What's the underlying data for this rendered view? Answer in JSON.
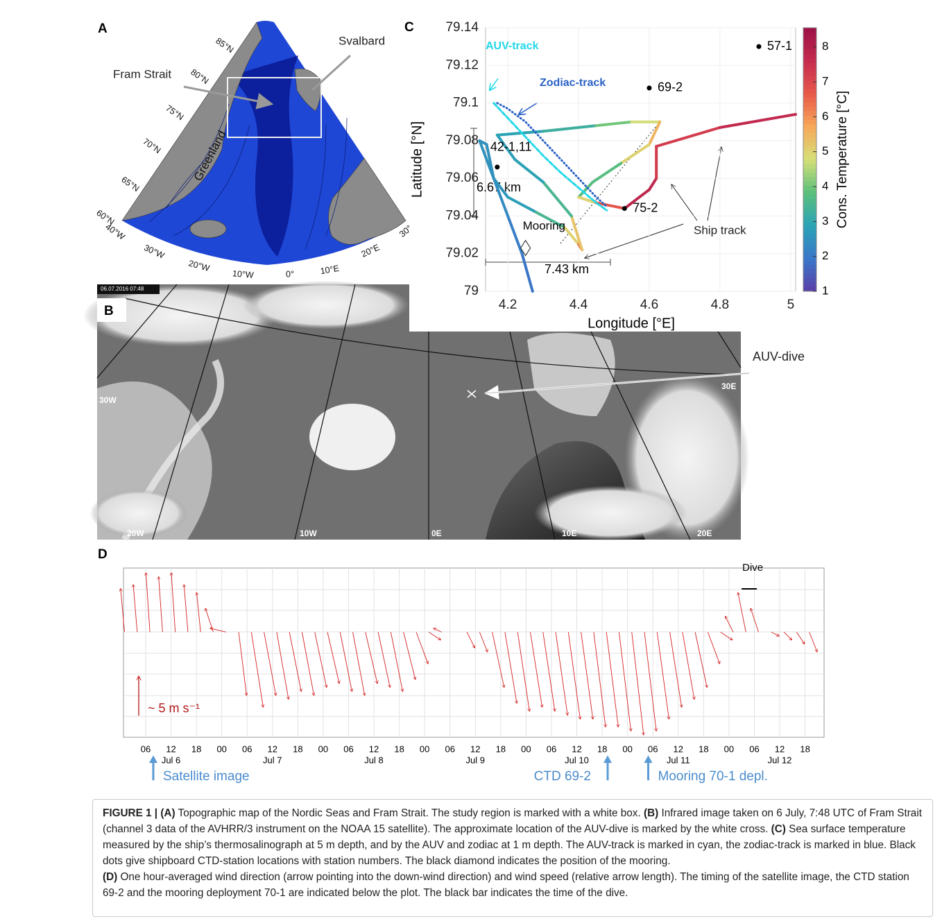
{
  "panel_a": {
    "label": "A",
    "place_labels": [
      "Fram Strait",
      "Svalbard",
      "Greenland"
    ],
    "lat_labels": [
      "85°N",
      "80°N",
      "75°N",
      "70°N",
      "65°N",
      "60°N"
    ],
    "lon_labels": [
      "40°W",
      "30°W",
      "20°W",
      "10°W",
      "0°",
      "10°E",
      "20°E",
      "30°E"
    ]
  },
  "panel_b": {
    "label": "B",
    "timestamp": "06.07.2016 07:48",
    "marker_label": "AUV-dive",
    "lon_labels": [
      "30W",
      "20W",
      "10W",
      "0E",
      "10E",
      "20E",
      "30E"
    ]
  },
  "chart_data": [
    {
      "type": "line",
      "panel_label": "C",
      "xlabel": "Longitude [°E]",
      "ylabel": "Latitude [°N]",
      "xlim": [
        4.137,
        5.014
      ],
      "ylim": [
        79,
        79.14
      ],
      "xticks": [
        4.2,
        4.4,
        4.6,
        4.8,
        5
      ],
      "yticks": [
        79,
        79.02,
        79.04,
        79.06,
        79.08,
        79.1,
        79.12,
        79.14
      ],
      "grid": true,
      "colorbar": {
        "label": "Cons. Temperature [°C]",
        "clim": [
          1,
          8.55
        ],
        "ticks": [
          1,
          2,
          3,
          4,
          5,
          6,
          7,
          8
        ],
        "colormap": [
          "#5a3fa8",
          "#3a78c9",
          "#2ba3b5",
          "#5cc07c",
          "#d6df78",
          "#f7a85a",
          "#e8584a",
          "#c42b4f",
          "#9c1048"
        ]
      },
      "series": [
        {
          "name": "Ship track",
          "x": [
            4.27,
            4.24,
            4.2,
            4.16,
            4.13,
            4.12,
            4.14,
            4.16,
            4.2,
            4.28,
            4.36,
            4.4,
            4.41,
            4.38,
            4.3,
            4.22,
            4.17,
            4.3,
            4.45,
            4.55,
            4.63,
            4.6,
            4.52,
            4.44,
            4.4,
            4.45,
            4.53,
            4.6,
            4.62,
            4.62,
            4.8,
            5.014
          ],
          "y": [
            79.0,
            79.02,
            79.04,
            79.06,
            79.075,
            79.08,
            79.078,
            79.06,
            79.05,
            79.042,
            79.034,
            79.025,
            79.022,
            79.04,
            79.058,
            79.07,
            79.083,
            79.085,
            79.088,
            79.09,
            79.09,
            79.078,
            79.068,
            79.058,
            79.05,
            79.047,
            79.044,
            79.054,
            79.06,
            79.077,
            79.087,
            79.094
          ],
          "temperature": [
            1.8,
            2,
            2.2,
            2.5,
            2.5,
            2.5,
            2.5,
            2.5,
            2.6,
            3,
            4,
            6,
            6.5,
            4,
            3,
            2.8,
            2.8,
            3,
            3.5,
            4.5,
            5,
            6,
            4,
            3.5,
            4,
            6,
            7.5,
            8,
            7.5,
            7,
            7.5,
            7.8
          ]
        },
        {
          "name": "Zodiac-track",
          "color": "#2a62c4",
          "x": [
            4.17,
            4.2,
            4.25,
            4.3,
            4.35,
            4.4,
            4.45,
            4.48
          ],
          "y": [
            79.1,
            79.097,
            79.09,
            79.08,
            79.07,
            79.06,
            79.05,
            79.045
          ]
        },
        {
          "name": "AUV-track",
          "color": "#22d8e8",
          "x": [
            4.16,
            4.2,
            4.25,
            4.3,
            4.35,
            4.4,
            4.45,
            4.48
          ],
          "y": [
            79.1,
            79.092,
            79.082,
            79.072,
            79.063,
            79.055,
            79.047,
            79.043
          ]
        }
      ],
      "stations": {
        "names": [
          "57-1",
          "69-2",
          "75-2",
          "42-1,11"
        ],
        "x": [
          4.91,
          4.6,
          4.53,
          4.17
        ],
        "y": [
          79.13,
          79.108,
          79.044,
          79.066
        ]
      },
      "mooring": {
        "label": "Mooring",
        "x": 4.25,
        "y": 79.023
      },
      "scale_bars": [
        "6.67 km",
        "7.43 km"
      ]
    },
    {
      "type": "quiver",
      "panel_label": "D",
      "xlim": [
        0.75,
        166.5
      ],
      "ylim": [
        -13.3,
        8.1
      ],
      "xticks": [
        {
          "value": 6,
          "label": "06"
        },
        {
          "value": 12,
          "label": "12"
        },
        {
          "value": 18,
          "label": "18"
        },
        {
          "value": 24,
          "label": "00"
        },
        {
          "value": 30,
          "label": "06"
        },
        {
          "value": 36,
          "label": "12"
        },
        {
          "value": 42,
          "label": "18"
        },
        {
          "value": 48,
          "label": "00"
        },
        {
          "value": 54,
          "label": "06"
        },
        {
          "value": 60,
          "label": "12"
        },
        {
          "value": 66,
          "label": "18"
        },
        {
          "value": 72,
          "label": "00"
        },
        {
          "value": 78,
          "label": "06"
        },
        {
          "value": 84,
          "label": "12"
        },
        {
          "value": 90,
          "label": "18"
        },
        {
          "value": 96,
          "label": "00"
        },
        {
          "value": 102,
          "label": "06"
        },
        {
          "value": 108,
          "label": "12"
        },
        {
          "value": 114,
          "label": "18"
        },
        {
          "value": 120,
          "label": "00"
        },
        {
          "value": 126,
          "label": "06"
        },
        {
          "value": 132,
          "label": "12"
        },
        {
          "value": 138,
          "label": "18"
        },
        {
          "value": 144,
          "label": "00"
        },
        {
          "value": 150,
          "label": "06"
        },
        {
          "value": 156,
          "label": "12"
        },
        {
          "value": 162,
          "label": "18"
        }
      ],
      "day_labels": [
        {
          "value": 12,
          "label": "Jul 6"
        },
        {
          "value": 36,
          "label": "Jul 7"
        },
        {
          "value": 60,
          "label": "Jul 8"
        },
        {
          "value": 84,
          "label": "Jul 9"
        },
        {
          "value": 108,
          "label": "Jul 10"
        },
        {
          "value": 132,
          "label": "Jul 11"
        },
        {
          "value": 156,
          "label": "Jul 12"
        }
      ],
      "series": [
        {
          "color": "#d42020",
          "x": [
            1,
            4,
            7,
            10,
            13,
            16,
            19,
            22,
            25,
            28,
            31,
            34,
            37,
            40,
            43,
            46,
            49,
            52,
            55,
            58,
            61,
            64,
            67,
            70,
            73,
            76,
            79,
            82,
            85,
            88,
            91,
            94,
            97,
            100,
            103,
            106,
            109,
            112,
            115,
            118,
            121,
            124,
            127,
            130,
            133,
            136,
            139,
            142,
            145,
            148,
            151,
            154,
            157,
            160,
            163
          ],
          "u": [
            -0.5,
            -0.5,
            -0.5,
            -0.5,
            -0.5,
            -0.5,
            -0.5,
            -1,
            -2,
            1,
            1.5,
            1.5,
            1.5,
            1.5,
            1.5,
            1.5,
            1.5,
            1.5,
            1.5,
            1.5,
            1.5,
            1.5,
            1.5,
            1.5,
            1.5,
            -1,
            null,
            1,
            1,
            1.5,
            1.5,
            1.5,
            1.5,
            1.5,
            1.5,
            1.5,
            1.5,
            1.5,
            1.5,
            1.5,
            1.5,
            1.5,
            1.5,
            1.5,
            1.5,
            1.5,
            1.5,
            1.5,
            -1,
            -1,
            -1,
            1,
            1,
            1,
            1
          ],
          "v": [
            5.5,
            6,
            7.5,
            7,
            7.5,
            6,
            5,
            3,
            0.5,
            -8,
            -9.5,
            -8,
            -8.5,
            -7.5,
            -8,
            -7,
            -6.5,
            -7.5,
            -8,
            -6.5,
            -7,
            -7.5,
            -6,
            -4,
            -1,
            0.5,
            null,
            -2,
            -2.5,
            -7,
            -9,
            -10,
            -9.5,
            -10,
            -10.5,
            -11,
            -11,
            -12,
            -12,
            -12.5,
            -13,
            -12.5,
            -11,
            -9.5,
            -8.5,
            -7,
            -4,
            -1,
            2,
            5,
            3,
            -0.5,
            -1,
            -1.5,
            -2.5
          ]
        }
      ],
      "scale": {
        "value": 5,
        "label": "~ 5 m s⁻¹"
      },
      "dive_label": "Dive",
      "dive": [
        147,
        150.6
      ],
      "annotations": [
        {
          "x": 7.8,
          "text": "Satellite image"
        },
        {
          "x": 115.3,
          "text": "CTD 69-2"
        },
        {
          "x": 124.9,
          "text": "Mooring 70-1 depl."
        }
      ]
    }
  ],
  "caption": {
    "figure_label": "FIGURE 1 |",
    "paragraphs": [
      [
        {
          "label": "(A)",
          "text": " Topographic map of the Nordic Seas and Fram Strait. The study region is marked with a white box. "
        },
        {
          "label": "(B)",
          "text": " Infrared image taken on 6 July, 7:48 UTC of Fram Strait (channel 3 data of the AVHRR/3 instrument on the NOAA 15 satellite). The approximate location of the AUV-dive is marked by the white cross. "
        },
        {
          "label": "(C)",
          "text": " Sea surface temperature measured by the ship’s thermosalinograph at 5 m depth, and by the AUV and zodiac at 1 m depth. The AUV-track is marked in cyan, the zodiac-track is marked in blue. Black dots give shipboard CTD-station locations with station numbers. The black diamond indicates the position of the mooring."
        }
      ],
      [
        {
          "label": "(D)",
          "text": " One hour-averaged wind direction (arrow pointing into the down-wind direction) and wind speed (relative arrow length). The timing of the satellite image, the CTD station 69-2 and the mooring deployment 70-1 are indicated below the plot. The black bar indicates the time of the dive."
        }
      ]
    ]
  }
}
